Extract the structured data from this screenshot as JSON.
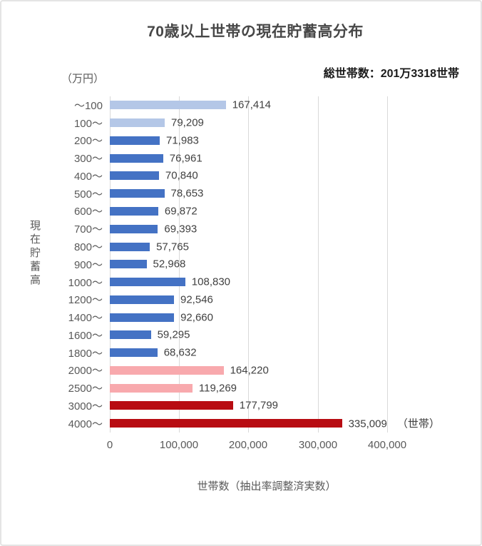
{
  "title": "70歳以上世帯の現在貯蓄高分布",
  "subtitle": "総世帯数：201万3318世帯",
  "y_unit_label": "（万円）",
  "y_axis_title": "現在貯蓄高",
  "x_axis_title": "世帯数（抽出率調整済実数）",
  "chart_data": {
    "type": "bar",
    "orientation": "horizontal",
    "title": "70歳以上世帯の現在貯蓄高分布",
    "xlabel": "世帯数（抽出率調整済実数）",
    "ylabel": "現在貯蓄高",
    "y_unit": "万円",
    "x_unit": "世帯",
    "grid": true,
    "xlim": [
      0,
      452000
    ],
    "x_ticks": [
      0,
      100000,
      200000,
      300000,
      400000
    ],
    "x_tick_labels": [
      "0",
      "100,000",
      "200,000",
      "300,000",
      "400,000"
    ],
    "categories": [
      "～100",
      "100～",
      "200～",
      "300～",
      "400～",
      "500～",
      "600～",
      "700～",
      "800～",
      "900～",
      "1000～",
      "1200～",
      "1400～",
      "1600～",
      "1800～",
      "2000～",
      "2500～",
      "3000～",
      "4000～"
    ],
    "values": [
      167414,
      79209,
      71983,
      76961,
      70840,
      78653,
      69872,
      69393,
      57765,
      52968,
      108830,
      92546,
      92660,
      59295,
      68632,
      164220,
      119269,
      177799,
      335009
    ],
    "value_labels": [
      "167,414",
      "79,209",
      "71,983",
      "76,961",
      "70,840",
      "78,653",
      "69,872",
      "69,393",
      "57,765",
      "52,968",
      "108,830",
      "92,546",
      "92,660",
      "59,295",
      "68,632",
      "164,220",
      "119,269",
      "177,799",
      "335,009"
    ],
    "bar_colors": [
      "#B4C7E7",
      "#B4C7E7",
      "#4472C4",
      "#4472C4",
      "#4472C4",
      "#4472C4",
      "#4472C4",
      "#4472C4",
      "#4472C4",
      "#4472C4",
      "#4472C4",
      "#4472C4",
      "#4472C4",
      "#4472C4",
      "#4472C4",
      "#F8A9AD",
      "#F8A9AD",
      "#B80C12",
      "#B80C12"
    ],
    "colors": {
      "light_blue": "#B4C7E7",
      "blue": "#4472C4",
      "pink": "#F8A9AD",
      "dark_red": "#B80C12",
      "gridline": "#D9D9D9",
      "axis_text": "#595959",
      "value_text": "#404040"
    },
    "annotations": [
      {
        "row": 18,
        "text": "（世帯）"
      }
    ]
  }
}
